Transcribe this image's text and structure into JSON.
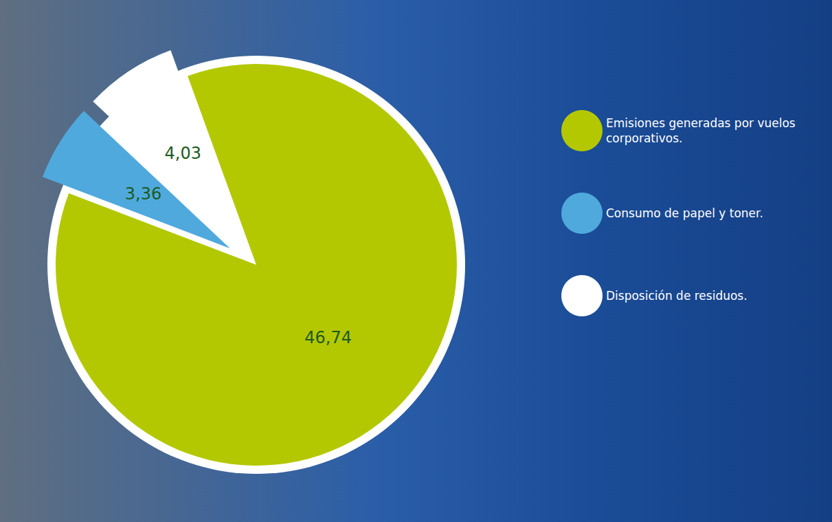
{
  "chart_data": {
    "type": "pie",
    "categories": [
      "Emisiones generadas por vuelos corporativos.",
      "Consumo de papel y toner.",
      "Disposición de residuos."
    ],
    "values": [
      46.74,
      3.36,
      4.03
    ],
    "value_labels": [
      "46,74",
      "3,36",
      "4,03"
    ],
    "colors": [
      "#b3c800",
      "#4fa9dd",
      "#ffffff"
    ],
    "data_labels": true,
    "legend": "right"
  }
}
